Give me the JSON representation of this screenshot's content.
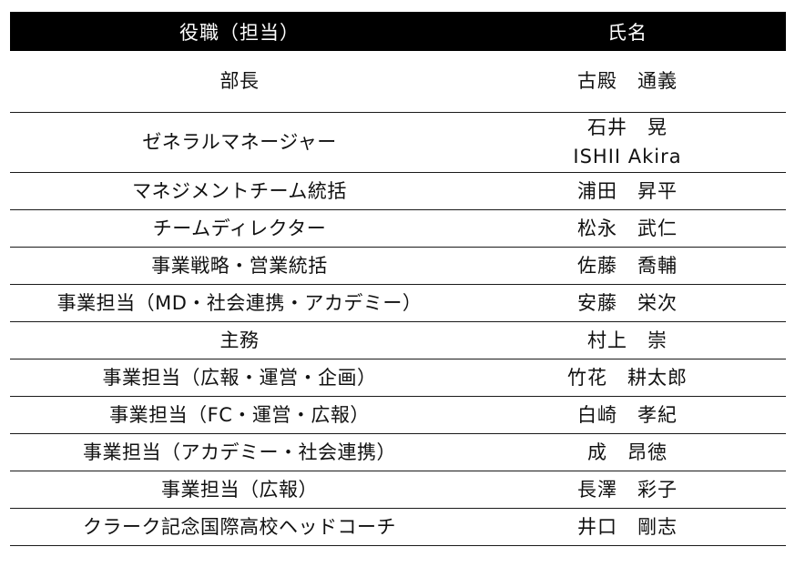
{
  "table": {
    "headers": {
      "role": "役職（担当）",
      "name": "氏名"
    },
    "rows": [
      {
        "role": "部長",
        "name": [
          "古殿　通義"
        ]
      },
      {
        "role": "ゼネラルマネージャー",
        "name": [
          "石井　晃",
          "ISHII Akira"
        ]
      },
      {
        "role": "マネジメントチーム統括",
        "name": [
          "浦田　昇平"
        ]
      },
      {
        "role": "チームディレクター",
        "name": [
          "松永　武仁"
        ]
      },
      {
        "role": "事業戦略・営業統括",
        "name": [
          "佐藤　喬輔"
        ]
      },
      {
        "role": "事業担当（MD・社会連携・アカデミー）",
        "name": [
          "安藤　栄次"
        ]
      },
      {
        "role": "主務",
        "name": [
          "村上　崇"
        ]
      },
      {
        "role": "事業担当（広報・運営・企画）",
        "name": [
          "竹花　耕太郎"
        ]
      },
      {
        "role": "事業担当（FC・運営・広報）",
        "name": [
          "白崎　孝紀"
        ]
      },
      {
        "role": "事業担当（アカデミー・社会連携）",
        "name": [
          "成　昂徳"
        ]
      },
      {
        "role": "事業担当（広報）",
        "name": [
          "長澤　彩子"
        ]
      },
      {
        "role": "クラーク記念国際高校ヘッドコーチ",
        "name": [
          "井口　剛志"
        ]
      }
    ]
  },
  "colors": {
    "header_background": "#000000",
    "header_text": "#ffffff",
    "row_divider": "#1a1a1a",
    "body_text": "#111111"
  }
}
